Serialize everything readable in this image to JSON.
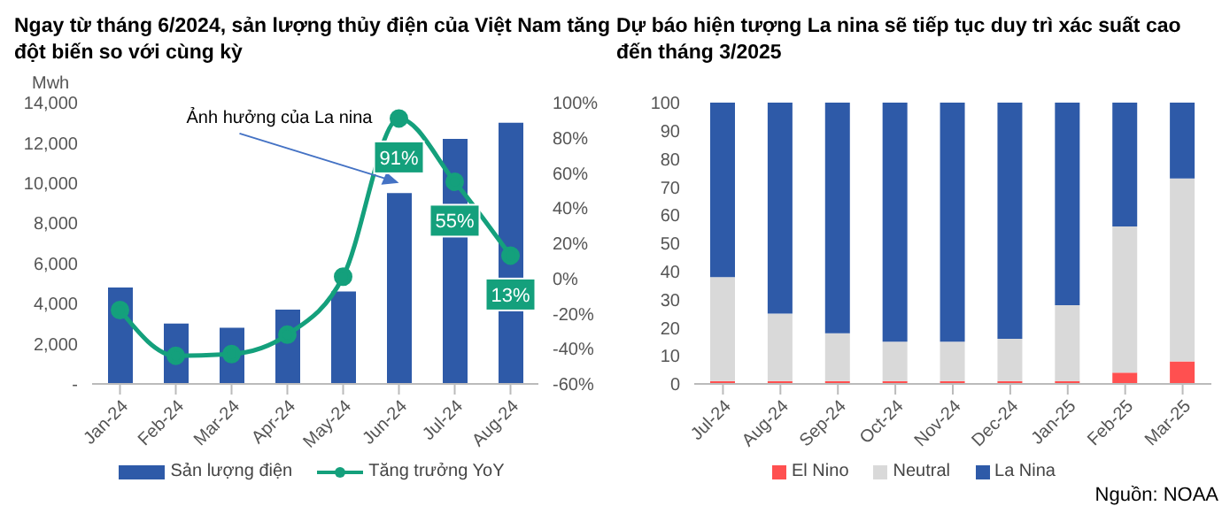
{
  "chart_data": [
    {
      "type": "bar",
      "title": "Ngay từ tháng 6/2024, sản lượng thủy điện của Việt Nam tăng đột biến so với cùng kỳ",
      "ylabel": "Mwh",
      "categories": [
        "Jan-24",
        "Feb-24",
        "Mar-24",
        "Apr-24",
        "May-24",
        "Jun-24",
        "Jul-24",
        "Aug-24"
      ],
      "series": [
        {
          "name": "Sản lượng điện",
          "type": "bar",
          "color": "#2e5aa8",
          "values": [
            4800,
            3000,
            2800,
            3700,
            4600,
            9500,
            12200,
            13000
          ]
        },
        {
          "name": "Tăng trưởng YoY",
          "type": "line",
          "axis": "y2",
          "color": "#14a07c",
          "marker": "circle",
          "values": [
            -18,
            -44,
            -43,
            -32,
            1,
            91,
            55,
            13
          ],
          "value_labels": [
            null,
            null,
            null,
            null,
            null,
            "91%",
            "55%",
            "13%"
          ]
        }
      ],
      "ylim": [
        0,
        14000
      ],
      "yticks": [
        {
          "value": 0,
          "label": "-"
        },
        {
          "value": 2000,
          "label": "2,000"
        },
        {
          "value": 4000,
          "label": "4,000"
        },
        {
          "value": 6000,
          "label": "6,000"
        },
        {
          "value": 8000,
          "label": "8,000"
        },
        {
          "value": 10000,
          "label": "10,000"
        },
        {
          "value": 12000,
          "label": "12,000"
        },
        {
          "value": 14000,
          "label": "14,000"
        }
      ],
      "y2lim": [
        -60,
        100
      ],
      "y2ticks": [
        {
          "value": -60,
          "label": "-60%"
        },
        {
          "value": -40,
          "label": "-40%"
        },
        {
          "value": -20,
          "label": "-20%"
        },
        {
          "value": 0,
          "label": "0%"
        },
        {
          "value": 20,
          "label": "20%"
        },
        {
          "value": 40,
          "label": "40%"
        },
        {
          "value": 60,
          "label": "60%"
        },
        {
          "value": 80,
          "label": "80%"
        },
        {
          "value": 100,
          "label": "100%"
        }
      ],
      "grid": false,
      "legend": "bottom",
      "annotations": [
        {
          "text": "Ảnh hưởng của La nina",
          "x": "Jun-24",
          "y": 10000
        }
      ]
    },
    {
      "type": "bar",
      "stacked": true,
      "title": "Dự báo hiện tượng La nina sẽ tiếp tục duy trì xác suất cao đến tháng 3/2025",
      "categories": [
        "Jul-24",
        "Aug-24",
        "Sep-24",
        "Oct-24",
        "Nov-24",
        "Dec-24",
        "Jan-25",
        "Feb-25",
        "Mar-25"
      ],
      "series": [
        {
          "name": "El Nino",
          "color": "#ff5050",
          "values": [
            1,
            1,
            1,
            1,
            1,
            1,
            1,
            4,
            8
          ]
        },
        {
          "name": "Neutral",
          "color": "#d9d9d9",
          "values": [
            37,
            24,
            17,
            14,
            14,
            15,
            27,
            52,
            65
          ]
        },
        {
          "name": "La Nina",
          "color": "#2e5aa8",
          "values": [
            62,
            75,
            82,
            85,
            85,
            84,
            72,
            44,
            27
          ]
        }
      ],
      "ylim": [
        0,
        100
      ],
      "yticks": [
        0,
        10,
        20,
        30,
        40,
        50,
        60,
        70,
        80,
        90,
        100
      ],
      "grid": false,
      "legend": "bottom",
      "annotations": [
        "Nguồn: NOAA"
      ]
    }
  ]
}
